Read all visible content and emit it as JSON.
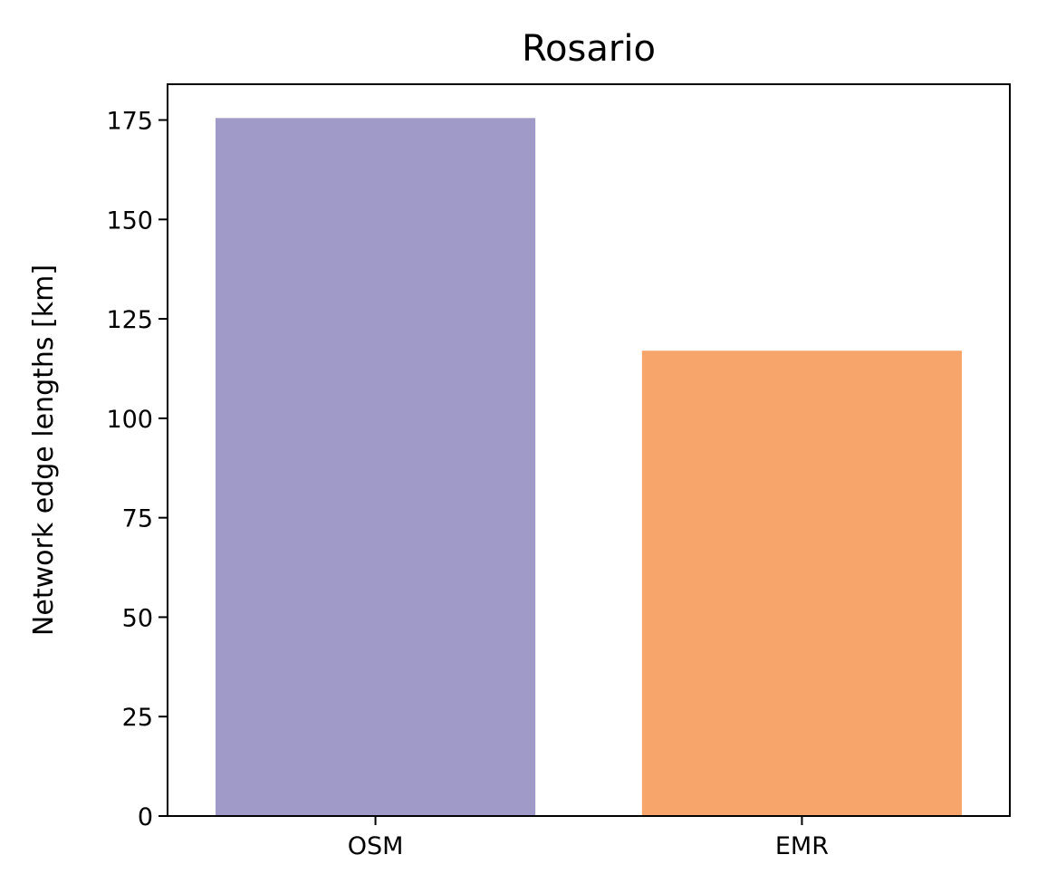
{
  "chart_data": {
    "type": "bar",
    "title": "Rosario",
    "xlabel": "",
    "ylabel": "Network edge lengths [km]",
    "categories": [
      "OSM",
      "EMR"
    ],
    "values": [
      175.5,
      117.0
    ],
    "colors": [
      "#a09ac9",
      "#f8a56b"
    ],
    "ylim": [
      0,
      184
    ],
    "yticks": [
      0,
      25,
      50,
      75,
      100,
      125,
      150,
      175
    ],
    "grid": false,
    "legend": "none"
  }
}
